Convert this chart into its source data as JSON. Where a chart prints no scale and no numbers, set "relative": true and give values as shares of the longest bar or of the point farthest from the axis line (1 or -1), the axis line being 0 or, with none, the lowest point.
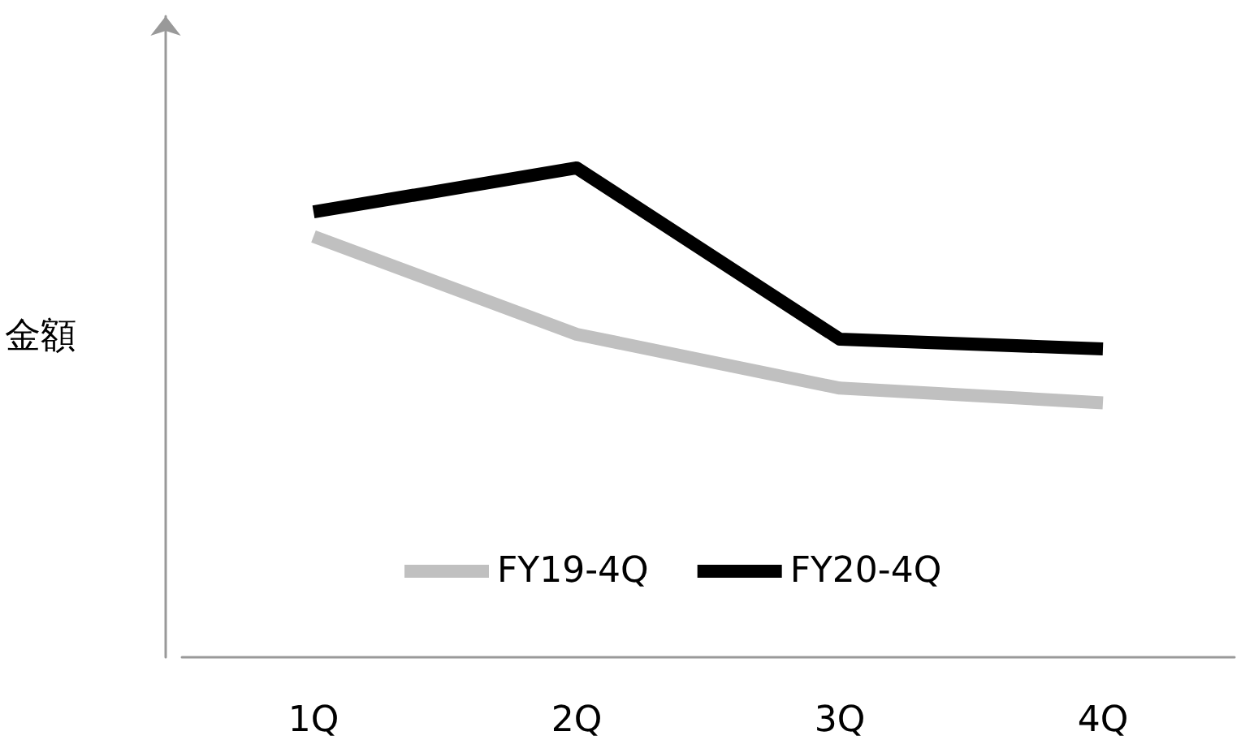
{
  "chart_data": {
    "type": "line",
    "ylabel": "金額",
    "categories": [
      "1Q",
      "2Q",
      "3Q",
      "4Q"
    ],
    "relative": true,
    "legend": "bottom",
    "marker": "none",
    "line_style": "solid",
    "grid": false,
    "series": [
      {
        "name": "FY19-4Q",
        "color": "#c0c0c0",
        "values": [
          0.86,
          0.66,
          0.55,
          0.52
        ]
      },
      {
        "name": "FY20-4Q",
        "color": "#000000",
        "values": [
          0.91,
          1,
          0.65,
          0.63
        ]
      }
    ]
  }
}
